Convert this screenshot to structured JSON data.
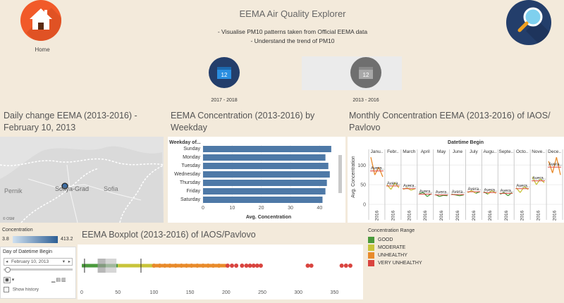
{
  "header": {
    "home_label": "Home",
    "title": "EEMA Air Quality Explorer",
    "subtitle_line1": "- Visualise PM10 patterns taken from Official EEMA data",
    "subtitle_line2": "- Understand the trend of PM10"
  },
  "periods": [
    {
      "label": "2017 - 2018",
      "calendar_number": "12"
    },
    {
      "label": "2013 - 2016",
      "calendar_number": "12"
    }
  ],
  "sections": {
    "daily_title": "Daily change EEMA (2013-2016) - February 10, 2013",
    "weekday_title": "EEMA Concentration (2013-2016) by Weekday",
    "monthly_title": "Monthly Concentration EEMA (2013-2016) of IAOS/ Pavlovo",
    "boxplot_title": "EEMA Boxplot (2013-2016) of IAOS/Pavlovo"
  },
  "map": {
    "labels": [
      "Pernik",
      "Sofiya-Grad",
      "Sofia"
    ],
    "attribution": "© OSM"
  },
  "concentration_legend": {
    "title": "Concentration",
    "min": "3.8",
    "max": "413.2"
  },
  "day_control": {
    "title": "Day of Datetime Begin",
    "value": "February 10, 2013",
    "show_history": "Show history"
  },
  "range_legend": {
    "title": "Concentration Range",
    "items": [
      {
        "label": "GOOD",
        "color": "#4a9a3c"
      },
      {
        "label": "MODERATE",
        "color": "#c8c43a"
      },
      {
        "label": "UNHEALTHY",
        "color": "#e88a2a"
      },
      {
        "label": "VERY UNHEALTHY",
        "color": "#d9443f"
      }
    ]
  },
  "chart_data": [
    {
      "type": "bar",
      "orientation": "horizontal",
      "title": "EEMA Concentration (2013-2016) by Weekday",
      "ylabel": "Weekday of...",
      "xlabel": "Avg. Concentration",
      "categories": [
        "Sunday",
        "Monday",
        "Tuesday",
        "Wednesday",
        "Thursday",
        "Friday",
        "Saturday"
      ],
      "values": [
        44,
        42,
        43,
        43.5,
        42.5,
        42,
        41
      ],
      "xlim": [
        0,
        45
      ],
      "xticks": [
        0,
        10,
        20,
        30,
        40
      ],
      "color": "#4e79a7"
    },
    {
      "type": "line",
      "title": "Monthly Concentration EEMA (2013-2016) of IAOS/ Pavlovo",
      "header": "Datetime Begin",
      "ylabel": "Avg. Concentration",
      "months": [
        "Janu..",
        "Febr..",
        "March",
        "April",
        "May",
        "June",
        "July",
        "Augu..",
        "Septe..",
        "Octo..",
        "Nove..",
        "Dece.."
      ],
      "year_label": "2016",
      "avg_label": "Avera..",
      "ylim": [
        0,
        140
      ],
      "yticks": [
        0,
        50,
        100
      ],
      "averages": [
        85,
        47,
        40,
        26,
        24,
        25,
        32,
        30,
        28,
        40,
        60,
        95
      ],
      "yearly": [
        [
          120,
          75,
          95,
          70
        ],
        [
          50,
          38,
          55,
          42
        ],
        [
          38,
          42,
          36,
          40
        ],
        [
          28,
          30,
          20,
          27
        ],
        [
          25,
          20,
          23,
          22
        ],
        [
          26,
          24,
          22,
          24
        ],
        [
          30,
          35,
          28,
          32
        ],
        [
          32,
          26,
          35,
          28
        ],
        [
          26,
          30,
          22,
          30
        ],
        [
          42,
          30,
          45,
          38
        ],
        [
          70,
          50,
          65,
          55
        ],
        [
          110,
          80,
          120,
          75
        ]
      ]
    },
    {
      "type": "boxplot",
      "title": "EEMA Boxplot (2013-2016) of IAOS/Pavlovo",
      "xlim": [
        0,
        375
      ],
      "xticks": [
        0,
        50,
        100,
        150,
        200,
        250,
        300,
        350
      ],
      "whisker_low": 3.8,
      "q1": 22,
      "median": 33,
      "q3": 48,
      "whisker_high": 82,
      "ranges": [
        {
          "from": 0,
          "to": 50,
          "color": "#4a9a3c"
        },
        {
          "from": 50,
          "to": 100,
          "color": "#c8c43a"
        },
        {
          "from": 100,
          "to": 200,
          "color": "#e88a2a"
        }
      ],
      "outliers_unhealthy": [
        100,
        108,
        115,
        122,
        130,
        138,
        145,
        152,
        160,
        168,
        175,
        182,
        190
      ],
      "outliers_very_unhealthy": [
        202,
        208,
        214,
        222,
        228,
        233,
        238,
        243,
        248,
        313,
        318,
        360,
        366,
        372
      ]
    }
  ]
}
